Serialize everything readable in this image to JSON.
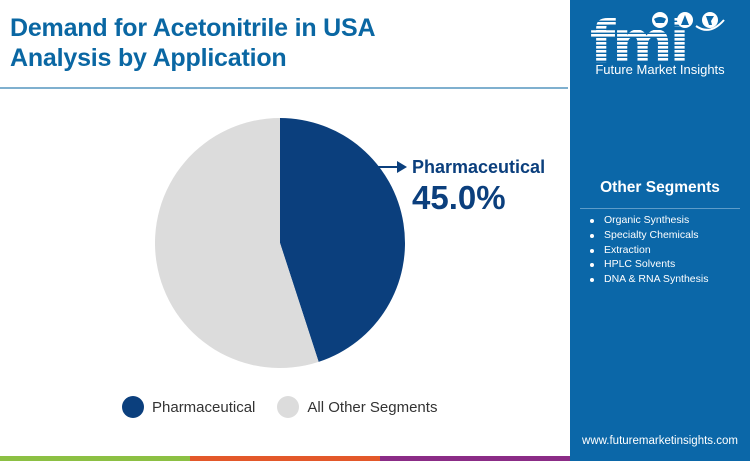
{
  "header": {
    "title_line1": "Demand for Acetonitrile in USA",
    "title_line2": "Analysis by Application"
  },
  "callout": {
    "label": "Pharmaceutical",
    "value": "45.0%"
  },
  "legend": [
    {
      "label": "Pharmaceutical",
      "color": "#0b3f7d"
    },
    {
      "label": "All Other Segments",
      "color": "#dcdcdc"
    }
  ],
  "side_panel": {
    "logo_text": "fmi",
    "logo_subtitle": "Future Market Insights",
    "segments_title": "Other Segments",
    "segments": [
      "Organic Synthesis",
      "Specialty Chemicals",
      "Extraction",
      "HPLC Solvents",
      "DNA & RNA Synthesis"
    ],
    "website": "www.futuremarketinsights.com"
  },
  "colors": {
    "title": "#0a67a3",
    "panel": "#0b67a8",
    "primary_slice": "#0b3f7d",
    "other_slice": "#dcdcdc",
    "bar_green": "#8cc043",
    "bar_orange": "#e3582a",
    "bar_purple": "#8b2c86"
  },
  "chart_data": {
    "type": "pie",
    "title": "Demand for Acetonitrile in USA Analysis by Application",
    "categories": [
      "Pharmaceutical",
      "All Other Segments"
    ],
    "values": [
      45.0,
      55.0
    ],
    "unit": "%",
    "colors": [
      "#0b3f7d",
      "#dcdcdc"
    ],
    "start_angle": "12 o'clock, clockwise",
    "annotations": [
      {
        "label": "Pharmaceutical",
        "value": "45.0%"
      }
    ],
    "legend_position": "bottom"
  }
}
